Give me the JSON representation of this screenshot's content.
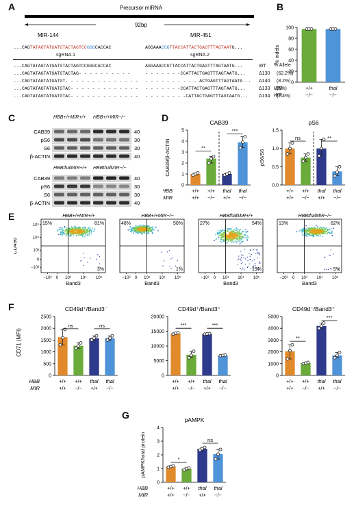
{
  "panelA": {
    "letter": "A",
    "precursor": "Precursor miRNA",
    "gap": "92bp",
    "mir144": "MIR-144",
    "mir451": "MIR-451",
    "ref_left_a": "...CAG",
    "ref_left_red": "TATAGTATGATGTACTAGTCC",
    "ref_left_blue": "GGG",
    "ref_left_b": "CACCAC",
    "ref_right_a": "AGGAAA",
    "ref_right_blue": "CCG",
    "ref_right_red": "TTACCATTACTGAGTTTAGTAAT",
    "ref_right_b": "G...",
    "sgrna1": "sgRNA.1",
    "sgrna2": "sgRNA.2",
    "allele_header": "% Allele",
    "rows": [
      {
        "left": "...CAGTATAGTATGATGTACTAGTCCGGGCACCAC",
        "right": "AGGAAACCGTTACCATTACTGAGTTTAGTAATG...",
        "id": "WT",
        "pct": ""
      },
      {
        "left": "...CAGTATAGTATGATGTACTAG- - - - - - - - - -",
        "right": "- - - - - - -CCATTACTGAGTTTAGTAATG...",
        "id": "Δ130",
        "pct": "(62.2%)"
      },
      {
        "left": "...CAGTATAGTATGATGT- - - - - - - - - - - - - -",
        "right": "- - - - - - - - - - ACTGAGTTTAGTAATG...",
        "id": "Δ140",
        "pct": "(8.2%)"
      },
      {
        "left": "...CAGTATAGTATGATGTAC- - - - - - - - - - - - -",
        "right": "- - - - - - -CCATTACTGAGTTTAGTAATG...",
        "id": "Δ133",
        "pct": "(5%)"
      },
      {
        "left": "...CAGTATAGTATGATGTAC- - - - - - - - - - - - -",
        "right": "- - - - - - - -CATTACTGAGTTTAGTAATG...",
        "id": "Δ134",
        "pct": "(2.4%)"
      }
    ]
  },
  "panelB": {
    "letter": "B",
    "ylabel": "% indels",
    "yticks": [
      "0",
      "20",
      "40",
      "60",
      "80",
      "100"
    ],
    "row1_label": "HBB",
    "row2_label": "MIR",
    "genotypes": [
      [
        "+/+",
        "−/−"
      ],
      [
        "thal",
        "−/−"
      ]
    ]
  },
  "panelC": {
    "letter": "C",
    "header_top_1": "HBB+/+MIR+/+",
    "header_top_2": "HBB+/+MIR−/−",
    "header_bot_1": "HBBthalMIR+/+",
    "header_bot_2": "HBBthalMIR−/−",
    "bands": [
      "CAB39",
      "pS6",
      "S6",
      "β-ACTIN"
    ],
    "kda": [
      "40",
      "30",
      "30",
      "40"
    ]
  },
  "panelD": {
    "letter": "D",
    "cab39_title": "CAB39",
    "cab39_ylabel": "CAB39/β-ACTIN",
    "cab39_yticks": [
      "0",
      "1",
      "2",
      "3",
      "4",
      "5"
    ],
    "ps6_title": "pS6",
    "ps6_ylabel": "pS6/S6",
    "ps6_yticks": [
      "0.0",
      "0.5",
      "1.0",
      "1.5"
    ],
    "sig_cab_1": "**",
    "sig_cab_2": "***",
    "sig_ps6_1": "ns",
    "sig_ps6_2": "**"
  },
  "panelE": {
    "letter": "E",
    "ylabel": "CD49d",
    "xlabel": "Band3",
    "plots": [
      {
        "title": "HBB+/+MIR+/+",
        "tl": "15%",
        "tr": "81%",
        "br": "3%"
      },
      {
        "title": "HBB+/+MIR−/−",
        "tl": "48%",
        "tr": "50%",
        "br": "1%"
      },
      {
        "title": "HBBthalMIR+/+",
        "tl": "27%",
        "tr": "54%",
        "br": "19%"
      },
      {
        "title": "HBBthalMIR−/−",
        "tl": "13%",
        "tr": "82%",
        "br": "5%"
      }
    ],
    "xticks": [
      "−10³",
      "0",
      "10³",
      "10⁴",
      "10⁵"
    ],
    "yticks": [
      "−10³",
      "0",
      "10³",
      "10⁴",
      "10⁵"
    ]
  },
  "panelF": {
    "letter": "F",
    "ylabel": "CD71 (MFI)",
    "charts": [
      {
        "title": "CD49d⁺/Band3⁻",
        "yticks": [
          "0",
          "500",
          "1000",
          "1500",
          "2000",
          "2500"
        ],
        "sig1": "ns",
        "sig2": "ns"
      },
      {
        "title": "CD49d⁺/Band3⁺",
        "yticks": [
          "0",
          "5000",
          "10000",
          "15000",
          "20000"
        ],
        "sig1": "***",
        "sig2": "***"
      },
      {
        "title": "CD49d⁻/Band3⁺",
        "yticks": [
          "0",
          "1000",
          "2000",
          "3000",
          "4000",
          "5000"
        ],
        "sig1": "**",
        "sig2": "***"
      }
    ]
  },
  "panelG": {
    "letter": "G",
    "title": "pAMPK",
    "ylabel": "pAMPK/total protein",
    "yticks": [
      "0",
      "1",
      "2",
      "3",
      "4"
    ],
    "sig1": "*",
    "sig2": "ns"
  },
  "geno": {
    "hbb_label": "HBB",
    "mir_label": "MIR",
    "hbb": [
      "+/+",
      "+/+",
      "thal",
      "thal"
    ],
    "mir": [
      "+/+",
      "−/−",
      "+/+",
      "−/−"
    ]
  },
  "colors": {
    "orange": "#e08a2c",
    "green": "#6aab3a",
    "navy": "#2e3a8c",
    "blue": "#4f93d8"
  },
  "chart_data": [
    {
      "type": "bar",
      "title": "% indels",
      "categories": [
        "HBB+/+ MIR−/−",
        "HBBthal MIR−/−"
      ],
      "values": [
        97,
        97
      ],
      "ylim": [
        0,
        100
      ]
    },
    {
      "type": "bar",
      "title": "CAB39",
      "categories": [
        "+/+ +/+",
        "+/+ −/−",
        "thal +/+",
        "thal −/−"
      ],
      "values": [
        1.0,
        2.4,
        1.0,
        3.9
      ],
      "points": [
        [
          0.9,
          1.0,
          1.1
        ],
        [
          2.0,
          2.4,
          2.6
        ],
        [
          0.9,
          1.0,
          1.1
        ],
        [
          3.4,
          3.9,
          4.4
        ]
      ],
      "ylim": [
        0,
        5
      ]
    },
    {
      "type": "bar",
      "title": "pS6",
      "categories": [
        "+/+ +/+",
        "+/+ −/−",
        "thal +/+",
        "thal −/−"
      ],
      "values": [
        1.0,
        0.75,
        1.0,
        0.37
      ],
      "points": [
        [
          0.85,
          1.0,
          1.15
        ],
        [
          0.65,
          0.75,
          0.85
        ],
        [
          0.8,
          1.0,
          1.25
        ],
        [
          0.25,
          0.35,
          0.5
        ]
      ],
      "ylim": [
        0,
        1.5
      ]
    },
    {
      "type": "bar",
      "title": "CD49d+/Band3−",
      "categories": [
        "+/+ +/+",
        "+/+ −/−",
        "thal +/+",
        "thal −/−"
      ],
      "values": [
        1620,
        1260,
        1580,
        1580
      ],
      "points": [
        [
          1300,
          1600,
          1950
        ],
        [
          1150,
          1250,
          1380
        ],
        [
          1500,
          1580,
          1680
        ],
        [
          1500,
          1580,
          1680
        ]
      ],
      "ylim": [
        0,
        2500
      ]
    },
    {
      "type": "bar",
      "title": "CD49d+/Band3+",
      "categories": [
        "+/+ +/+",
        "+/+ −/−",
        "thal +/+",
        "thal −/−"
      ],
      "values": [
        14300,
        7000,
        14100,
        6800
      ],
      "points": [
        [
          14000,
          14300,
          14500
        ],
        [
          6000,
          6800,
          8200
        ],
        [
          14000,
          14100,
          14200
        ],
        [
          6700,
          6800,
          6900
        ]
      ],
      "ylim": [
        0,
        20000
      ]
    },
    {
      "type": "bar",
      "title": "CD49d−/Band3+",
      "categories": [
        "+/+ +/+",
        "+/+ −/−",
        "thal +/+",
        "thal −/−"
      ],
      "values": [
        2050,
        1050,
        4200,
        1700
      ],
      "points": [
        [
          1400,
          2100,
          2600
        ],
        [
          1000,
          1050,
          1100
        ],
        [
          4000,
          4200,
          4450
        ],
        [
          1500,
          1700,
          1950
        ]
      ],
      "ylim": [
        0,
        5000
      ]
    },
    {
      "type": "bar",
      "title": "pAMPK",
      "categories": [
        "+/+ +/+",
        "+/+ −/−",
        "thal +/+",
        "thal −/−"
      ],
      "values": [
        1.15,
        1.0,
        2.45,
        2.05
      ],
      "points": [
        [
          1.1,
          1.15,
          1.2
        ],
        [
          0.9,
          1.0,
          1.05
        ],
        [
          2.35,
          2.45,
          2.55
        ],
        [
          1.7,
          2.05,
          2.4
        ]
      ],
      "ylim": [
        0,
        4
      ]
    }
  ]
}
